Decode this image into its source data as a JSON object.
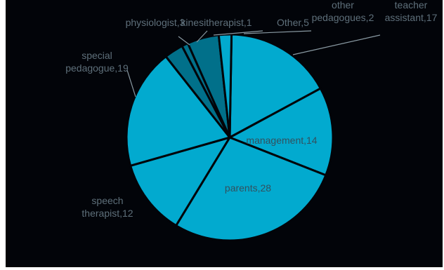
{
  "chart_data": {
    "type": "pie",
    "title": "",
    "slices": [
      {
        "label": "teacher assistant",
        "value": 17,
        "color": "#02aacf",
        "label_lines": [
          "teacher",
          "assistant,17"
        ]
      },
      {
        "label": "management",
        "value": 14,
        "color": "#02aacf",
        "label_lines": [
          "management,14"
        ]
      },
      {
        "label": "parents",
        "value": 28,
        "color": "#02aacf",
        "label_lines": [
          "parents,28"
        ]
      },
      {
        "label": "speech therapist",
        "value": 12,
        "color": "#02aacf",
        "label_lines": [
          "speech",
          "therapist,12"
        ]
      },
      {
        "label": "special pedagogue",
        "value": 19,
        "color": "#02aacf",
        "label_lines": [
          "special",
          "pedagogue,19"
        ]
      },
      {
        "label": "physiologist",
        "value": 3,
        "color": "#01708a",
        "label_lines": [
          "physiologist,3"
        ]
      },
      {
        "label": "kinesitherapist",
        "value": 1,
        "color": "#01708a",
        "label_lines": [
          "kinesitherapist,1"
        ]
      },
      {
        "label": "Other",
        "value": 5,
        "color": "#01708a",
        "label_lines": [
          "Other,5"
        ]
      },
      {
        "label": "other pedagogues",
        "value": 2,
        "color": "#02aacf",
        "label_lines": [
          "other",
          "pedagogues,2"
        ]
      }
    ],
    "legend": "none",
    "data_labels": "category,value"
  }
}
